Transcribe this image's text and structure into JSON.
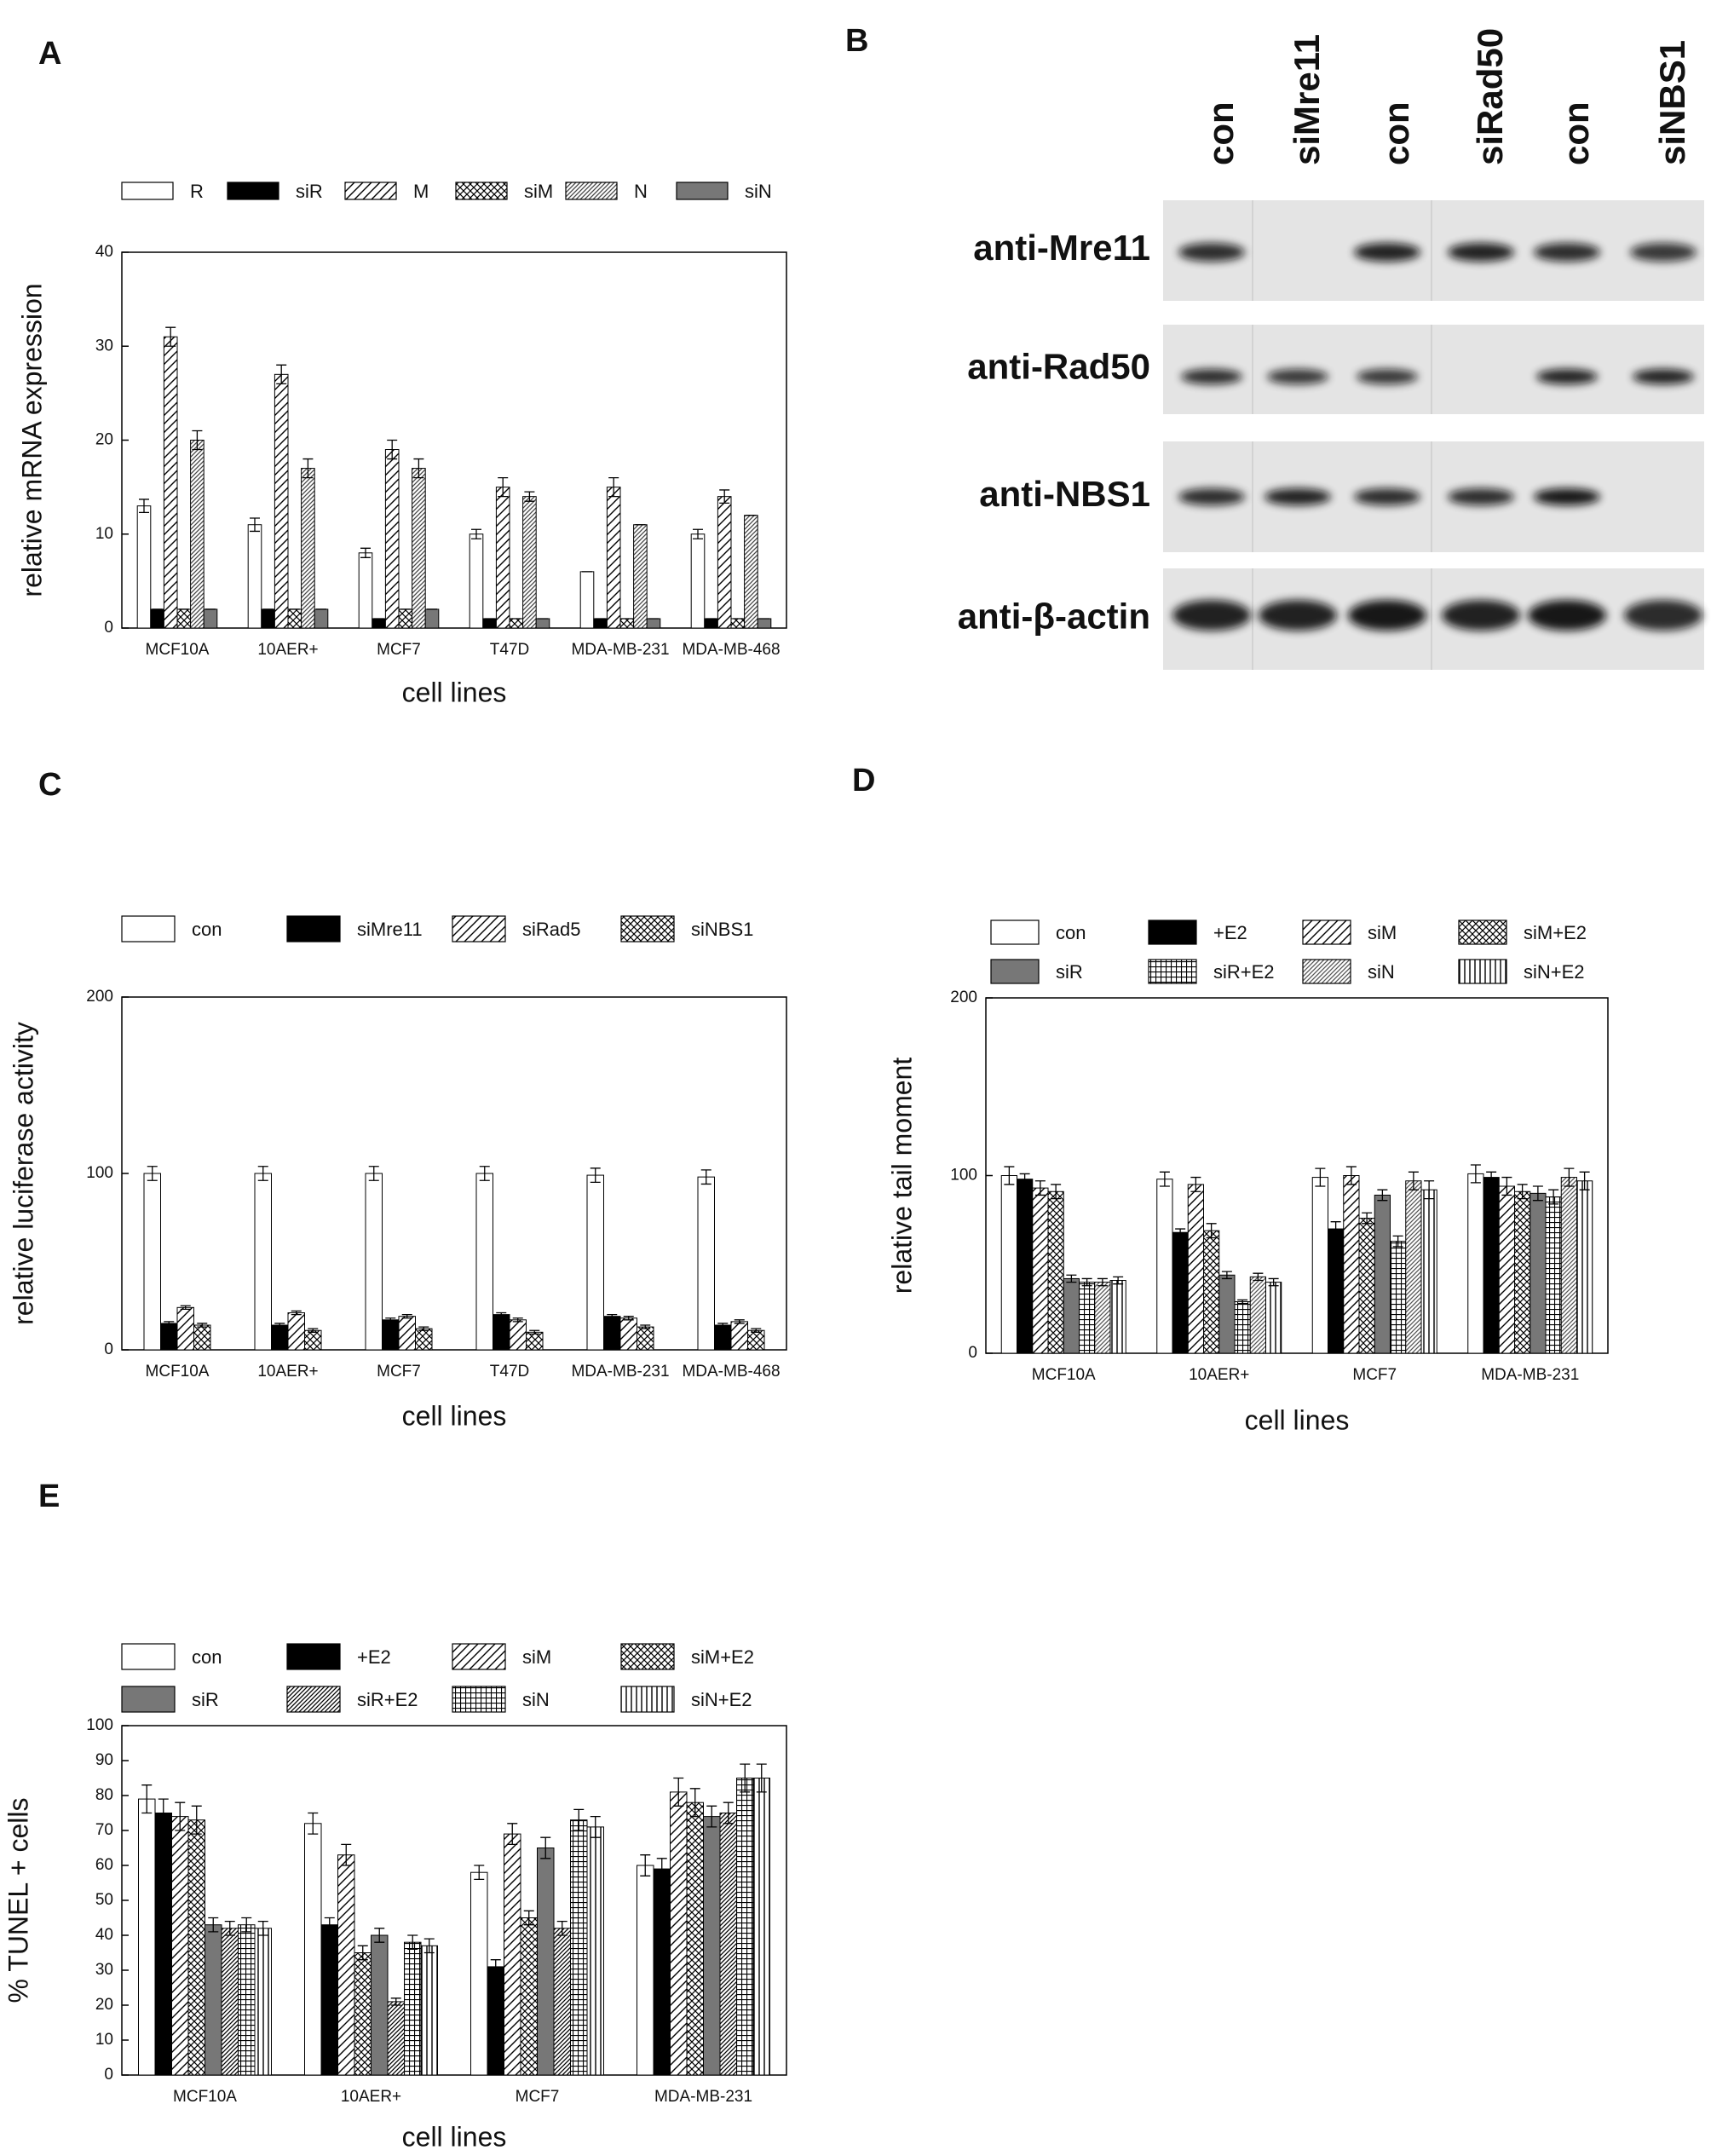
{
  "chart_data": [
    {
      "type": "bar",
      "panel_label": "A",
      "xlabel": "cell lines",
      "ylabel": "relative mRNA expression",
      "categories": [
        "MCF10A",
        "10AER+",
        "MCF7",
        "T47D",
        "MDA-MB-231",
        "MDA-MB-468"
      ],
      "ylim": [
        0,
        40
      ],
      "yticks": [
        0,
        10,
        20,
        30,
        40
      ],
      "series": [
        {
          "name": "R",
          "color": "#ffffff",
          "pattern": "solid",
          "values": [
            13,
            11,
            8,
            10,
            6,
            10
          ],
          "errors": [
            0.7,
            0.7,
            0.5,
            0.5,
            0,
            0.5
          ]
        },
        {
          "name": "siR",
          "color": "#000000",
          "pattern": "solid",
          "values": [
            2,
            2,
            1,
            1,
            1,
            1
          ],
          "errors": [
            0,
            0,
            0,
            0,
            0,
            0
          ]
        },
        {
          "name": "M",
          "color": "#000000",
          "pattern": "diag",
          "values": [
            31,
            27,
            19,
            15,
            15,
            14
          ],
          "errors": [
            1,
            1,
            1,
            1,
            1,
            0.7
          ]
        },
        {
          "name": "siM",
          "color": "#000000",
          "pattern": "cross",
          "values": [
            2,
            2,
            2,
            1,
            1,
            1
          ],
          "errors": [
            0,
            0,
            0,
            0,
            0,
            0
          ]
        },
        {
          "name": "N",
          "color": "#444444",
          "pattern": "diag-dense",
          "values": [
            20,
            17,
            17,
            14,
            11,
            12
          ],
          "errors": [
            1,
            1,
            1,
            0.5,
            0,
            0
          ]
        },
        {
          "name": "siN",
          "color": "#777777",
          "pattern": "solid",
          "values": [
            2,
            2,
            2,
            1,
            1,
            1
          ],
          "errors": [
            0,
            0,
            0,
            0,
            0,
            0
          ]
        }
      ]
    },
    {
      "type": "bar",
      "panel_label": "C",
      "xlabel": "cell lines",
      "ylabel": "relative luciferase activity",
      "categories": [
        "MCF10A",
        "10AER+",
        "MCF7",
        "T47D",
        "MDA-MB-231",
        "MDA-MB-468"
      ],
      "ylim": [
        0,
        200
      ],
      "yticks": [
        0,
        100,
        200
      ],
      "series": [
        {
          "name": "con",
          "color": "#ffffff",
          "pattern": "solid",
          "values": [
            100,
            100,
            100,
            100,
            99,
            98
          ],
          "errors": [
            4,
            4,
            4,
            4,
            4,
            4
          ]
        },
        {
          "name": "siMre11",
          "color": "#000000",
          "pattern": "solid",
          "values": [
            15,
            14,
            17,
            20,
            19,
            14
          ],
          "errors": [
            1,
            1,
            1,
            1,
            1,
            1
          ]
        },
        {
          "name": "siRad5",
          "color": "#000000",
          "pattern": "diag",
          "values": [
            24,
            21,
            19,
            17,
            18,
            16
          ],
          "errors": [
            1,
            1,
            1,
            1,
            1,
            1
          ]
        },
        {
          "name": "siNBS1",
          "color": "#000000",
          "pattern": "cross",
          "values": [
            14,
            11,
            12,
            10,
            13,
            11
          ],
          "errors": [
            1,
            1,
            1,
            1,
            1,
            1
          ]
        }
      ]
    },
    {
      "type": "bar",
      "panel_label": "D",
      "xlabel": "cell lines",
      "ylabel": "relative tail moment",
      "categories": [
        "MCF10A",
        "10AER+",
        "MCF7",
        "MDA-MB-231"
      ],
      "ylim": [
        0,
        200
      ],
      "yticks": [
        0,
        100,
        200
      ],
      "series": [
        {
          "name": "con",
          "color": "#ffffff",
          "pattern": "solid",
          "values": [
            100,
            98,
            99,
            101
          ],
          "errors": [
            5,
            4,
            5,
            5
          ]
        },
        {
          "name": "+E2",
          "color": "#000000",
          "pattern": "solid",
          "values": [
            98,
            68,
            70,
            99
          ],
          "errors": [
            3,
            2,
            4,
            3
          ]
        },
        {
          "name": "siM",
          "color": "#000000",
          "pattern": "diag",
          "values": [
            93,
            95,
            100,
            94
          ],
          "errors": [
            4,
            4,
            5,
            5
          ]
        },
        {
          "name": "siM+E2",
          "color": "#000000",
          "pattern": "cross",
          "values": [
            91,
            69,
            76,
            91
          ],
          "errors": [
            4,
            4,
            3,
            4
          ]
        },
        {
          "name": "siR",
          "color": "#777777",
          "pattern": "solid",
          "values": [
            42,
            44,
            89,
            90
          ],
          "errors": [
            2,
            2,
            3,
            4
          ]
        },
        {
          "name": "siR+E2",
          "color": "#000000",
          "pattern": "grid",
          "values": [
            40,
            29,
            63,
            88
          ],
          "errors": [
            2,
            1,
            3,
            4
          ]
        },
        {
          "name": "siN",
          "color": "#555555",
          "pattern": "diag-dense",
          "values": [
            40,
            43,
            97,
            99
          ],
          "errors": [
            2,
            2,
            5,
            5
          ]
        },
        {
          "name": "siN+E2",
          "color": "#000000",
          "pattern": "vertical",
          "values": [
            41,
            40,
            92,
            97
          ],
          "errors": [
            2,
            2,
            5,
            5
          ]
        }
      ]
    },
    {
      "type": "bar",
      "panel_label": "E",
      "xlabel": "cell lines",
      "ylabel": "% TUNEL + cells",
      "categories": [
        "MCF10A",
        "10AER+",
        "MCF7",
        "MDA-MB-231"
      ],
      "ylim": [
        0,
        100
      ],
      "yticks": [
        0,
        10,
        20,
        30,
        40,
        50,
        60,
        70,
        80,
        90,
        100
      ],
      "series": [
        {
          "name": "con",
          "color": "#ffffff",
          "pattern": "solid",
          "values": [
            79,
            72,
            58,
            60
          ],
          "errors": [
            4,
            3,
            2,
            3
          ]
        },
        {
          "name": "+E2",
          "color": "#000000",
          "pattern": "solid",
          "values": [
            75,
            43,
            31,
            59
          ],
          "errors": [
            4,
            2,
            2,
            3
          ]
        },
        {
          "name": "siM",
          "color": "#000000",
          "pattern": "diag",
          "values": [
            74,
            63,
            69,
            81
          ],
          "errors": [
            4,
            3,
            3,
            4
          ]
        },
        {
          "name": "siM+E2",
          "color": "#000000",
          "pattern": "cross",
          "values": [
            73,
            35,
            45,
            78
          ],
          "errors": [
            4,
            2,
            2,
            4
          ]
        },
        {
          "name": "siR",
          "color": "#777777",
          "pattern": "solid",
          "values": [
            43,
            40,
            65,
            74
          ],
          "errors": [
            2,
            2,
            3,
            3
          ]
        },
        {
          "name": "siR+E2",
          "color": "#000000",
          "pattern": "diag-dense",
          "values": [
            42,
            21,
            42,
            75
          ],
          "errors": [
            2,
            1,
            2,
            3
          ]
        },
        {
          "name": "siN",
          "color": "#000000",
          "pattern": "grid",
          "values": [
            43,
            38,
            73,
            85
          ],
          "errors": [
            2,
            2,
            3,
            4
          ]
        },
        {
          "name": "siN+E2",
          "color": "#000000",
          "pattern": "vertical",
          "values": [
            42,
            37,
            71,
            85
          ],
          "errors": [
            2,
            2,
            3,
            4
          ]
        }
      ]
    }
  ],
  "blot": {
    "panel_label": "B",
    "lanes": [
      "con",
      "siMre11",
      "con",
      "siRad50",
      "con",
      "siNBS1"
    ],
    "antibodies": [
      "anti-Mre11",
      "anti-Rad50",
      "anti-NBS1",
      "anti-β-actin"
    ]
  }
}
